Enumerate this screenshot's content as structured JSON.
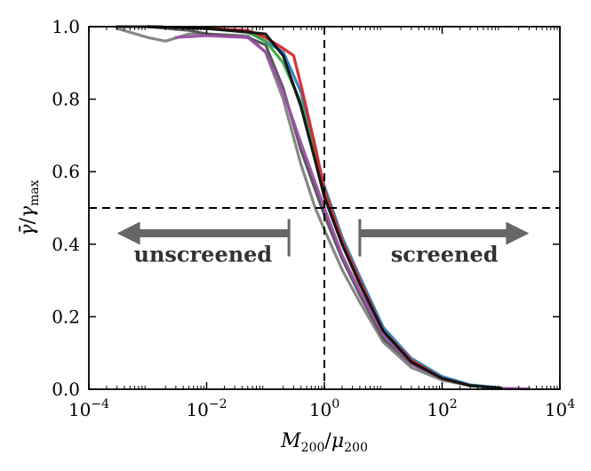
{
  "chart_data": {
    "type": "line",
    "xscale": "log",
    "xlim": [
      0.0001,
      10000
    ],
    "ylim": [
      0.0,
      1.0
    ],
    "xlabel": "M200/μ200",
    "ylabel": "γ̄/γmax",
    "xticks": [
      {
        "value": 0.0001,
        "base": "10",
        "exp": "−4"
      },
      {
        "value": 0.01,
        "base": "10",
        "exp": "−2"
      },
      {
        "value": 1,
        "base": "10",
        "exp": "0"
      },
      {
        "value": 100,
        "base": "10",
        "exp": "2"
      },
      {
        "value": 10000,
        "base": "10",
        "exp": "4"
      }
    ],
    "yticks": [
      "0.0",
      "0.2",
      "0.4",
      "0.6",
      "0.8",
      "1.0"
    ],
    "hline": 0.5,
    "vline": 1,
    "annotations": [
      {
        "text": "unscreened",
        "arrow_from": 0.25,
        "arrow_to": 0.0003,
        "y": 0.43
      },
      {
        "text": "screened",
        "arrow_from": 4,
        "arrow_to": 3000,
        "y": 0.43
      }
    ],
    "series": [
      {
        "color": "#808080",
        "x": [
          0.0003,
          0.001,
          0.002,
          0.005,
          0.01,
          0.05,
          0.1,
          0.2,
          0.4,
          0.7,
          1,
          2,
          4,
          10,
          30,
          100,
          300,
          1000
        ],
        "y": [
          0.995,
          0.97,
          0.96,
          0.98,
          0.98,
          0.975,
          0.93,
          0.8,
          0.62,
          0.5,
          0.44,
          0.33,
          0.24,
          0.13,
          0.06,
          0.025,
          0.01,
          0.003
        ]
      },
      {
        "color": "#505050",
        "x": [
          0.0003,
          0.001,
          0.005,
          0.01,
          0.05,
          0.1,
          0.2,
          0.4,
          0.7,
          1,
          2,
          4,
          10,
          30,
          100,
          300,
          1000
        ],
        "y": [
          1.0,
          1.0,
          0.99,
          0.98,
          0.97,
          0.95,
          0.83,
          0.66,
          0.55,
          0.48,
          0.36,
          0.26,
          0.14,
          0.07,
          0.03,
          0.01,
          0.003
        ]
      },
      {
        "color": "#9b4fa8",
        "x": [
          0.003,
          0.01,
          0.05,
          0.1,
          0.2,
          0.4,
          0.7,
          1,
          2,
          4,
          10,
          30,
          100,
          300,
          1000,
          3000
        ],
        "y": [
          0.97,
          0.975,
          0.97,
          0.93,
          0.82,
          0.68,
          0.57,
          0.5,
          0.37,
          0.27,
          0.15,
          0.07,
          0.03,
          0.01,
          0.003,
          0.001
        ]
      },
      {
        "color": "#2a7fc0",
        "x": [
          0.001,
          0.01,
          0.05,
          0.1,
          0.2,
          0.4,
          0.7,
          1,
          2,
          4,
          10,
          30,
          100,
          300,
          1000
        ],
        "y": [
          1.0,
          0.995,
          0.985,
          0.96,
          0.93,
          0.82,
          0.66,
          0.56,
          0.42,
          0.31,
          0.17,
          0.085,
          0.035,
          0.012,
          0.004
        ]
      },
      {
        "color": "#3aa844",
        "x": [
          0.001,
          0.01,
          0.05,
          0.1,
          0.2,
          0.4,
          0.7,
          1,
          2,
          4,
          10,
          30,
          100,
          300,
          1000
        ],
        "y": [
          1.0,
          0.995,
          0.985,
          0.96,
          0.9,
          0.79,
          0.64,
          0.54,
          0.4,
          0.29,
          0.16,
          0.075,
          0.03,
          0.01,
          0.003
        ]
      },
      {
        "color": "#d62728",
        "x": [
          0.001,
          0.01,
          0.05,
          0.1,
          0.2,
          0.3,
          0.4,
          0.7,
          1,
          2,
          4,
          10,
          30,
          100,
          300
        ],
        "y": [
          1.0,
          0.995,
          0.99,
          0.97,
          0.94,
          0.92,
          0.84,
          0.67,
          0.55,
          0.41,
          0.3,
          0.16,
          0.08,
          0.03,
          0.01
        ]
      },
      {
        "color": "#111111",
        "x": [
          0.001,
          0.01,
          0.05,
          0.1,
          0.2,
          0.4,
          0.7,
          1,
          2,
          4,
          10,
          30,
          100,
          300,
          1000
        ],
        "y": [
          1.0,
          0.995,
          0.985,
          0.98,
          0.92,
          0.78,
          0.63,
          0.53,
          0.4,
          0.29,
          0.16,
          0.075,
          0.03,
          0.01,
          0.003
        ]
      }
    ]
  }
}
